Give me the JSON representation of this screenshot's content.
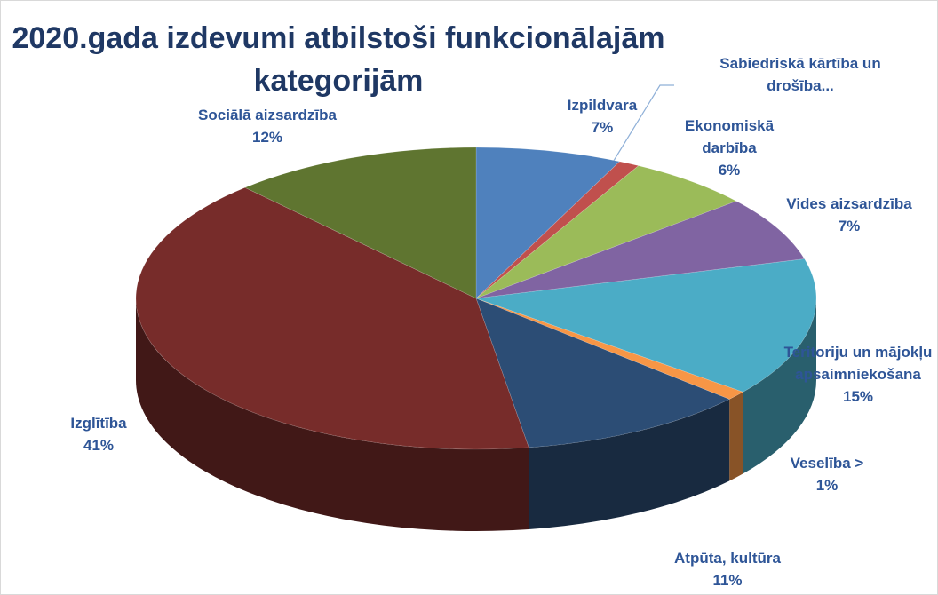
{
  "chart_data": {
    "type": "pie3d",
    "title": "2020.gada izdevumi atbilstoši funkcionālajām kategorijām",
    "categories": [
      "Izpildvara",
      "Sabiedriskā kārtība un drošība...",
      "Ekonomiskā darbība",
      "Vides aizsardzība",
      "Teritoriju un mājokļu apsaimniekošana",
      "Veselība >",
      "Atpūta, kultūra",
      "Izglītība",
      "Sociālā aizsardzība"
    ],
    "values": [
      7,
      1,
      6,
      7,
      15,
      1,
      11,
      41,
      12
    ],
    "value_labels": [
      "7%",
      null,
      "6%",
      "7%",
      "15%",
      "1%",
      "11%",
      "41%",
      "12%"
    ],
    "colors": [
      "#4f81bd",
      "#c0504d",
      "#9bbb59",
      "#8064a2",
      "#4bacc6",
      "#f79646",
      "#2c4d75",
      "#772c2a",
      "#5f7530"
    ]
  }
}
